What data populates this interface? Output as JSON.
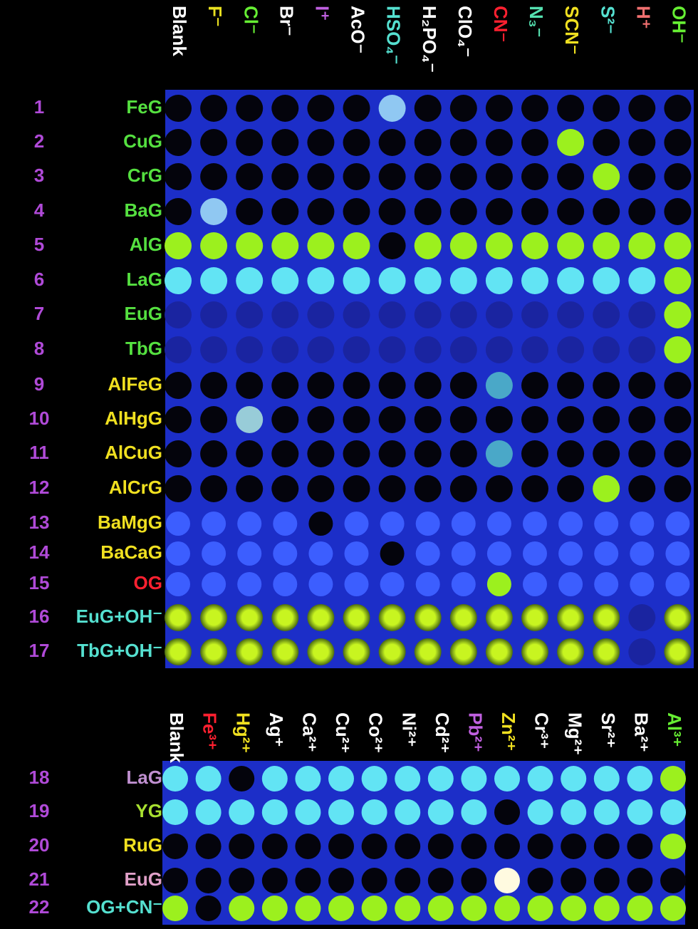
{
  "top_panel": {
    "columns": [
      {
        "label": "Blank",
        "color": "#ffffff"
      },
      {
        "label": "F⁻",
        "color": "#e8e020"
      },
      {
        "label": "Cl⁻",
        "color": "#66ee33"
      },
      {
        "label": "Br⁻",
        "color": "#ffffff"
      },
      {
        "label": "I⁺",
        "color": "#c060e0"
      },
      {
        "label": "AcO⁻",
        "color": "#ffffff"
      },
      {
        "label": "HSO₄⁻",
        "color": "#55e0d0"
      },
      {
        "label": "H₂PO₄⁻",
        "color": "#ffffff"
      },
      {
        "label": "ClO₄⁻",
        "color": "#ffffff"
      },
      {
        "label": "CN⁻",
        "color": "#ff2030"
      },
      {
        "label": "N₃⁻",
        "color": "#55e0b0"
      },
      {
        "label": "SCN⁻",
        "color": "#f0e020"
      },
      {
        "label": "S²⁻",
        "color": "#55e0d0"
      },
      {
        "label": "H⁺",
        "color": "#f07070"
      },
      {
        "label": "OH⁻",
        "color": "#66ee33"
      }
    ],
    "rows": [
      {
        "number": 1,
        "name": "FeG",
        "color": "#55e040"
      },
      {
        "number": 2,
        "name": "CuG",
        "color": "#55e040"
      },
      {
        "number": 3,
        "name": "CrG",
        "color": "#55e040"
      },
      {
        "number": 4,
        "name": "BaG",
        "color": "#55e040"
      },
      {
        "number": 5,
        "name": "AlG",
        "color": "#55e040"
      },
      {
        "number": 6,
        "name": "LaG",
        "color": "#55e040"
      },
      {
        "number": 7,
        "name": "EuG",
        "color": "#55e040"
      },
      {
        "number": 8,
        "name": "TbG",
        "color": "#55e040"
      },
      {
        "number": 9,
        "name": "AlFeG",
        "color": "#f0e020"
      },
      {
        "number": 10,
        "name": "AlHgG",
        "color": "#f0e020"
      },
      {
        "number": 11,
        "name": "AlCuG",
        "color": "#f0e020"
      },
      {
        "number": 12,
        "name": "AlCrG",
        "color": "#f0e020"
      },
      {
        "number": 13,
        "name": "BaMgG",
        "color": "#f0e020"
      },
      {
        "number": 14,
        "name": "BaCaG",
        "color": "#f0e020"
      },
      {
        "number": 15,
        "name": "OG",
        "color": "#ff2030"
      },
      {
        "number": 16,
        "name": "EuG+OH⁻",
        "color": "#55e0d0"
      },
      {
        "number": 17,
        "name": "TbG+OH⁻",
        "color": "#55e0d0"
      }
    ]
  },
  "bottom_panel": {
    "columns": [
      {
        "label": "Blank",
        "color": "#ffffff"
      },
      {
        "label": "Fe³⁺",
        "color": "#ff2030"
      },
      {
        "label": "Hg²⁺",
        "color": "#f0e020"
      },
      {
        "label": "Ag⁺",
        "color": "#ffffff"
      },
      {
        "label": "Ca²⁺",
        "color": "#ffffff"
      },
      {
        "label": "Cu²⁺",
        "color": "#ffffff"
      },
      {
        "label": "Co²⁺",
        "color": "#ffffff"
      },
      {
        "label": "Ni²⁺",
        "color": "#ffffff"
      },
      {
        "label": "Cd²⁺",
        "color": "#ffffff"
      },
      {
        "label": "Pb²⁺",
        "color": "#c060e0"
      },
      {
        "label": "Zn²⁺",
        "color": "#f0e020"
      },
      {
        "label": "Cr³⁺",
        "color": "#ffffff"
      },
      {
        "label": "Mg²⁺",
        "color": "#ffffff"
      },
      {
        "label": "Sr²⁺",
        "color": "#ffffff"
      },
      {
        "label": "Ba²⁺",
        "color": "#ffffff"
      },
      {
        "label": "Al³⁺",
        "color": "#66ee33"
      }
    ],
    "rows": [
      {
        "number": 18,
        "name": "LaG",
        "color": "#c090d0"
      },
      {
        "number": 19,
        "name": "YG",
        "color": "#a8e030"
      },
      {
        "number": 20,
        "name": "RuG",
        "color": "#f0e020"
      },
      {
        "number": 21,
        "name": "EuG",
        "color": "#e0a0c8"
      },
      {
        "number": 22,
        "name": "OG+CN⁻",
        "color": "#55e0d0"
      }
    ]
  }
}
